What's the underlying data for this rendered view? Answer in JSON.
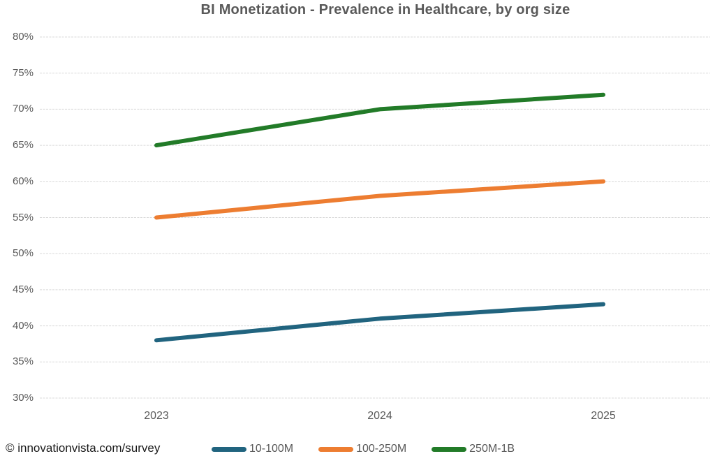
{
  "title": "BI Monetization - Prevalence in Healthcare, by org size",
  "footer": {
    "attribution": "© innovationvista.com/survey"
  },
  "colors": {
    "text": "#595959",
    "gridline": "#D9D9D9",
    "attribution": "#1A1A1A",
    "background": "#FFFFFF"
  },
  "chart_data": {
    "type": "line",
    "title": "BI Monetization - Prevalence in Healthcare, by org size",
    "categories": [
      "2023",
      "2024",
      "2025"
    ],
    "series": [
      {
        "name": "10-100M",
        "color": "#21647F",
        "values": [
          38,
          41,
          43
        ]
      },
      {
        "name": "100-250M",
        "color": "#ED7D31",
        "values": [
          55,
          58,
          60
        ]
      },
      {
        "name": "250M-1B",
        "color": "#227B28",
        "values": [
          65,
          70,
          72
        ]
      }
    ],
    "xlabel": "",
    "ylabel": "",
    "ylim": [
      30,
      80
    ],
    "yticks": [
      {
        "value": 80,
        "label": "80%"
      },
      {
        "value": 75,
        "label": "75%"
      },
      {
        "value": 70,
        "label": "70%"
      },
      {
        "value": 65,
        "label": "65%"
      },
      {
        "value": 60,
        "label": "60%"
      },
      {
        "value": 55,
        "label": "55%"
      },
      {
        "value": 50,
        "label": "50%"
      },
      {
        "value": 45,
        "label": "45%"
      },
      {
        "value": 40,
        "label": "40%"
      },
      {
        "value": 35,
        "label": "35%"
      },
      {
        "value": 30,
        "label": "30%"
      }
    ],
    "grid": true,
    "legend_position": "bottom"
  }
}
